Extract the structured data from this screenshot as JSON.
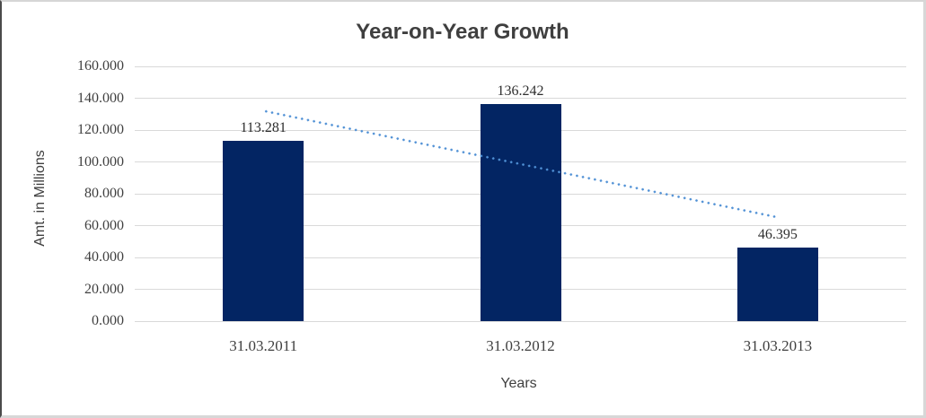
{
  "window": {
    "background": "#ffffff",
    "border_dark": "#4b4b4b",
    "border_light": "#d6d6d6"
  },
  "chart_data": {
    "type": "bar",
    "title": "Year-on-Year Growth",
    "xlabel": "Years",
    "ylabel": "Amt. in Millions",
    "categories": [
      "31.03.2011",
      "31.03.2012",
      "31.03.2013"
    ],
    "values": [
      113.281,
      136.242,
      46.395
    ],
    "data_labels": [
      "113.281",
      "136.242",
      "46.395"
    ],
    "ylim": [
      0,
      160
    ],
    "ytick_values": [
      0,
      20,
      40,
      60,
      80,
      100,
      120,
      140,
      160
    ],
    "ytick_labels": [
      "0.000",
      "20.000",
      "40.000",
      "60.000",
      "80.000",
      "100.000",
      "120.000",
      "140.000",
      "160.000"
    ],
    "grid": true,
    "legend": "none",
    "trendline": {
      "type": "linear",
      "style": "dotted",
      "start_value": 132.08,
      "end_value": 65.19
    },
    "colors": {
      "bar": "#032563",
      "trendline": "#4f90d5",
      "gridline": "#d9d9d9",
      "text": "#3f3f3f",
      "data_label_text": "#2e2e2e"
    }
  }
}
